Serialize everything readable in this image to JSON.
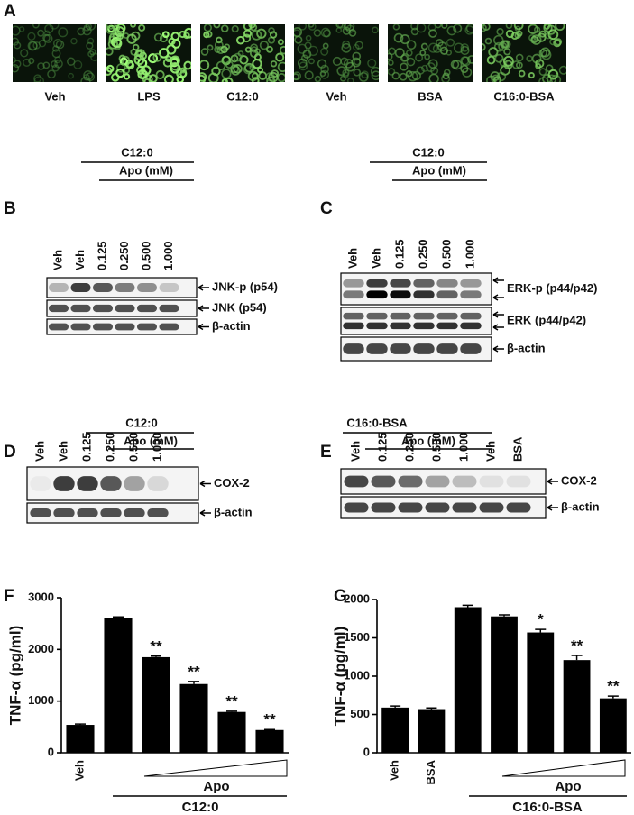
{
  "panels": {
    "A": {
      "label": "A",
      "images": [
        "Veh",
        "LPS",
        "C12:0",
        "Veh",
        "BSA",
        "C16:0-BSA"
      ]
    },
    "B": {
      "label": "B",
      "treatment": "C12:0",
      "dose": "Apo (mM)",
      "lanes": [
        "Veh",
        "Veh",
        "0.125",
        "0.250",
        "0.500",
        "1.000"
      ],
      "rows": [
        "JNK-p (p54)",
        "JNK (p54)",
        "β-actin"
      ]
    },
    "C": {
      "label": "C",
      "treatment": "C12:0",
      "dose": "Apo (mM)",
      "lanes": [
        "Veh",
        "Veh",
        "0.125",
        "0.250",
        "0.500",
        "1.000"
      ],
      "rows": [
        "ERK-p (p44/p42)",
        "ERK (p44/p42)",
        "β-actin"
      ]
    },
    "D": {
      "label": "D",
      "treatment": "C12:0",
      "dose": "Apo (mM)",
      "lanes": [
        "Veh",
        "Veh",
        "0.125",
        "0.250",
        "0.500",
        "1.000"
      ],
      "rows": [
        "COX-2",
        "β-actin"
      ]
    },
    "E": {
      "label": "E",
      "treatment": "C16:0-BSA",
      "dose": "Apo (mM)",
      "lanes": [
        "Veh",
        "0.125",
        "0.250",
        "0.500",
        "1.000",
        "Veh",
        "BSA"
      ],
      "rows": [
        "COX-2",
        "β-actin"
      ]
    }
  },
  "chart_data": [
    {
      "type": "bar",
      "panel": "F",
      "y_label": "TNF-α (pg/ml)",
      "categories": [
        "Veh",
        null,
        null,
        null,
        null,
        null
      ],
      "values": [
        540,
        2600,
        1850,
        1330,
        790,
        440
      ],
      "errors": [
        15,
        30,
        20,
        50,
        15,
        10
      ],
      "annotations": [
        null,
        null,
        "**",
        "**",
        "**",
        "**"
      ],
      "dose_label": "Apo",
      "treatment_label": "C12:0",
      "color": "#000000",
      "ylim": [
        0,
        3000
      ],
      "yticks": [
        0,
        1000,
        2000,
        3000
      ]
    },
    {
      "type": "bar",
      "panel": "G",
      "y_label": "TNF-α (pg/ml)",
      "categories": [
        "Veh",
        "BSA",
        null,
        null,
        null,
        null,
        null
      ],
      "values": [
        590,
        570,
        1900,
        1780,
        1570,
        1210,
        710
      ],
      "errors": [
        20,
        15,
        25,
        20,
        40,
        60,
        30
      ],
      "annotations": [
        null,
        null,
        null,
        null,
        "*",
        "**",
        "**"
      ],
      "dose_label": "Apo",
      "treatment_label": "C16:0-BSA",
      "color": "#000000",
      "ylim": [
        0,
        2000
      ],
      "yticks": [
        0,
        500,
        1000,
        1500,
        2000
      ]
    }
  ]
}
